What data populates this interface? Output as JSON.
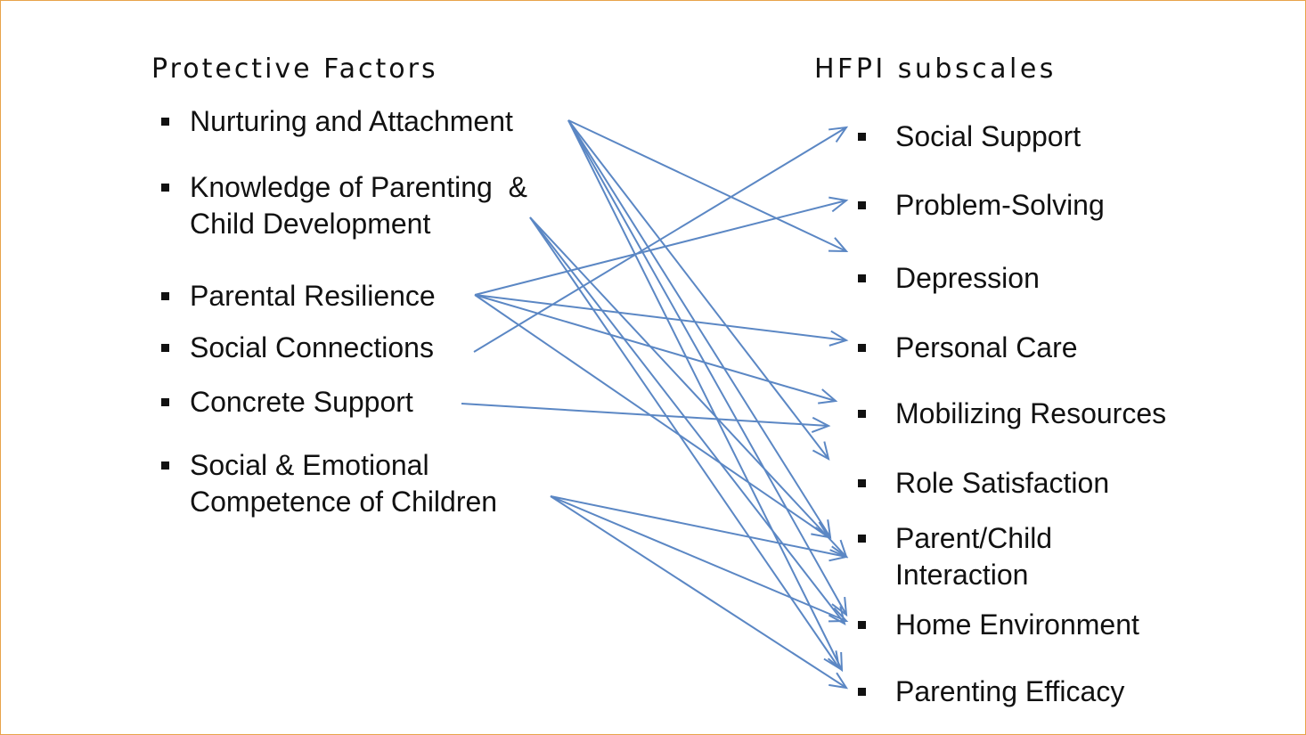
{
  "left_column": {
    "heading": "Protective Factors",
    "items": [
      {
        "id": "nurturing",
        "lines": [
          "Nurturing and Attachment"
        ]
      },
      {
        "id": "knowledge",
        "lines": [
          "Knowledge of Parenting  &",
          "Child Development"
        ]
      },
      {
        "id": "resilience",
        "lines": [
          "Parental Resilience"
        ]
      },
      {
        "id": "connections",
        "lines": [
          "Social Connections"
        ]
      },
      {
        "id": "concrete",
        "lines": [
          "Concrete Support"
        ]
      },
      {
        "id": "emotional",
        "lines": [
          "Social & Emotional",
          "Competence of Children"
        ]
      }
    ]
  },
  "right_column": {
    "heading": "HFPI  subscales",
    "items": [
      {
        "id": "social_support",
        "lines": [
          "Social Support"
        ]
      },
      {
        "id": "problem_solving",
        "lines": [
          "Problem-Solving"
        ]
      },
      {
        "id": "depression",
        "lines": [
          "Depression"
        ]
      },
      {
        "id": "personal_care",
        "lines": [
          "Personal Care"
        ]
      },
      {
        "id": "mobilizing",
        "lines": [
          "Mobilizing Resources"
        ]
      },
      {
        "id": "role_satisfaction",
        "lines": [
          "Role Satisfaction"
        ]
      },
      {
        "id": "parent_child",
        "lines": [
          "Parent/Child",
          "Interaction"
        ]
      },
      {
        "id": "home_env",
        "lines": [
          "Home Environment"
        ]
      },
      {
        "id": "parenting_efficacy",
        "lines": [
          "Parenting Efficacy"
        ]
      }
    ]
  },
  "arrow_color": "#5b87c4",
  "connections": [
    {
      "from": "nurturing",
      "to": "depression"
    },
    {
      "from": "nurturing",
      "to": "role_satisfaction"
    },
    {
      "from": "nurturing",
      "to": "parent_child"
    },
    {
      "from": "nurturing",
      "to": "home_env"
    },
    {
      "from": "nurturing",
      "to": "parenting_efficacy"
    },
    {
      "from": "knowledge",
      "to": "parent_child"
    },
    {
      "from": "knowledge",
      "to": "home_env"
    },
    {
      "from": "knowledge",
      "to": "parenting_efficacy"
    },
    {
      "from": "resilience",
      "to": "problem_solving"
    },
    {
      "from": "resilience",
      "to": "personal_care"
    },
    {
      "from": "resilience",
      "to": "mobilizing"
    },
    {
      "from": "resilience",
      "to": "parenting_efficacy"
    },
    {
      "from": "connections",
      "to": "social_support"
    },
    {
      "from": "concrete",
      "to": "mobilizing"
    },
    {
      "from": "emotional",
      "to": "parent_child"
    },
    {
      "from": "emotional",
      "to": "home_env"
    },
    {
      "from": "emotional",
      "to": "parenting_efficacy"
    }
  ]
}
